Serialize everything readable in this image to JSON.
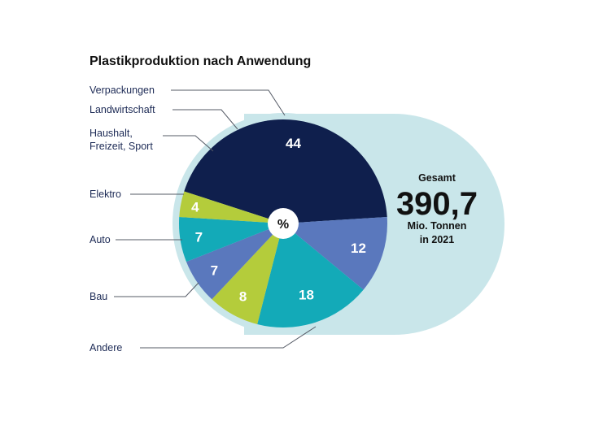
{
  "chart_data": {
    "type": "pie",
    "title": "Plastikproduktion nach Anwendung",
    "center_label": "%",
    "slices": [
      {
        "label": "Verpackungen",
        "value": 44,
        "color": "#0f1f4d"
      },
      {
        "label": "Andere",
        "value": 12,
        "color": "#5a78bd"
      },
      {
        "label": "Bau",
        "value": 18,
        "color": "#13aab8"
      },
      {
        "label": "Auto",
        "value": 8,
        "color": "#b4cc3b"
      },
      {
        "label": "Elektro",
        "value": 7,
        "color": "#5a78bd"
      },
      {
        "label": "Haushalt, Freizeit, Sport",
        "label_lines": [
          "Haushalt,",
          "Freizeit, Sport"
        ],
        "value": 7,
        "color": "#13aab8"
      },
      {
        "label": "Landwirtschaft",
        "value": 4,
        "color": "#b4cc3b"
      }
    ],
    "total": {
      "heading": "Gesamt",
      "value": "390,7",
      "unit_line1": "Mio. Tonnen",
      "unit_line2": "in 2021"
    },
    "colors": {
      "background_capsule": "#c9e6ea",
      "text": "#111111",
      "label_text": "#1c2a55"
    }
  }
}
